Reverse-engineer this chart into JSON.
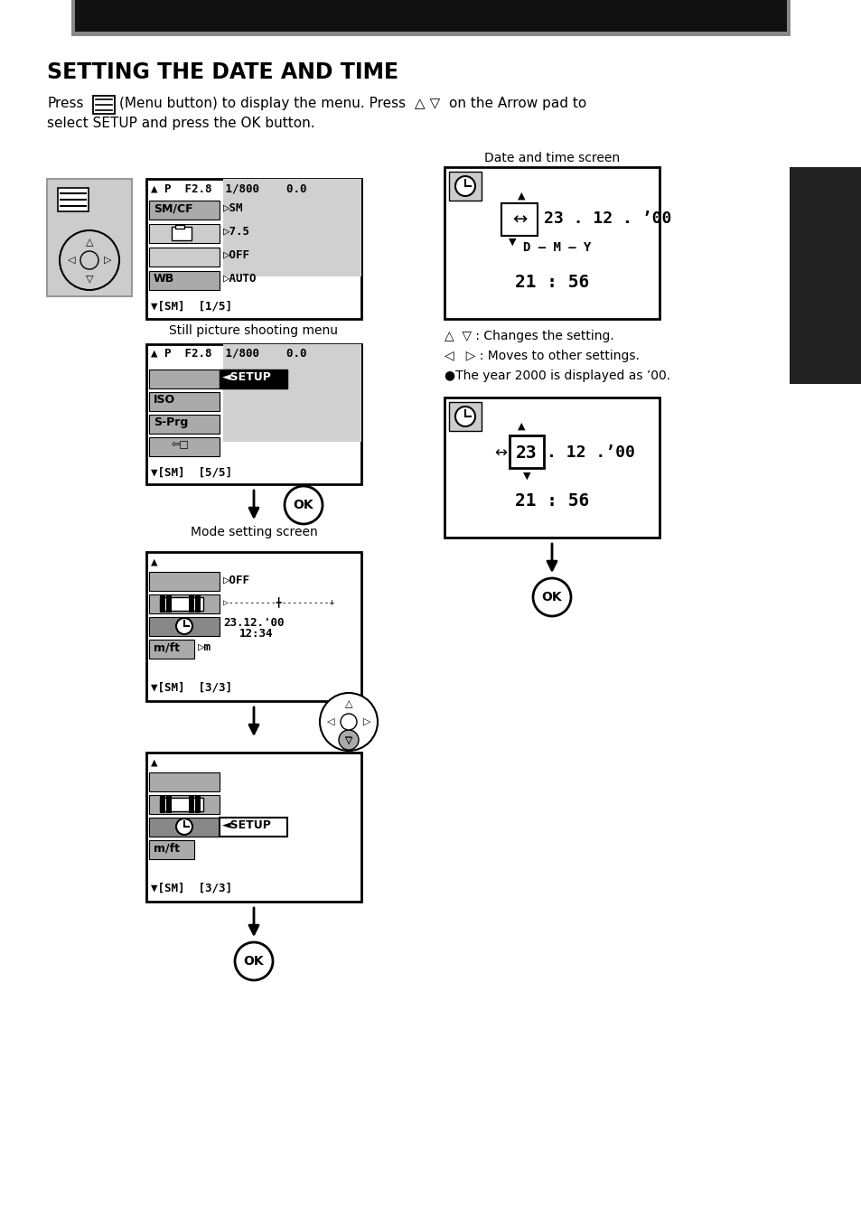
{
  "bg_color": "#ffffff",
  "title": "SETTING THE DATE AND TIME",
  "intro1": "Press",
  "intro2": "(Menu button) to display the menu. Press  △ ▽  on the Arrow pad to",
  "intro3": "select SETUP and press the OK button.",
  "label_still": "Still picture shooting menu",
  "label_mode": "Mode setting screen",
  "label_datetime": "Date and time screen",
  "note1": "△  ▽ : Changes the setting.",
  "note2": "◁   ▷ : Moves to other settings.",
  "note3": "●The year 2000 is displayed as ’00.",
  "screen1_hdr": "▲ P  F2.8  1/800    0.0",
  "screen2_hdr": "▲ P  F2.8  1/800    0.0",
  "setup_label": "◄SETUP",
  "ok_label": "OK",
  "s3_date": "23.12.'00",
  "s3_time": "    12:34",
  "dt1_date": "23 . 12 . ’00",
  "dt1_label": "D — M — Y",
  "dt1_time": "21 : 56",
  "dt2_val": "23",
  "dt2_rest": ". 12 .’00",
  "dt2_time": "21 : 56",
  "dark_bar_color": "#111111",
  "gray_bg": "#cccccc",
  "med_gray": "#aaaaaa",
  "dark_gray": "#777777",
  "row_highlight": "#888888",
  "dark_row": "#333333"
}
